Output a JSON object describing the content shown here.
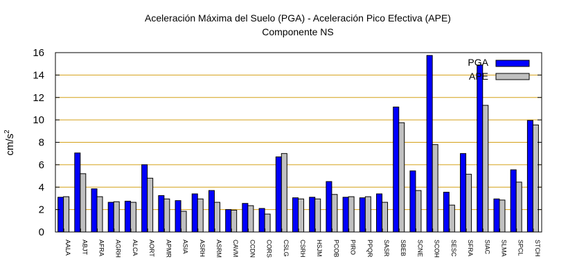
{
  "chart_data": {
    "type": "bar",
    "title": "Aceleración Máxima del Suelo (PGA) -  Aceleración Pico Efectiva (APE)",
    "subtitle": "Componente NS",
    "xlabel": "",
    "ylabel": "cm/s",
    "ylabel_sup": "2",
    "ylim": [
      0,
      16
    ],
    "yticks": [
      0,
      2,
      4,
      6,
      8,
      10,
      12,
      14,
      16
    ],
    "grid": "horizontal",
    "legend": "top-right",
    "categories": [
      "AALA",
      "ABJT",
      "AFRA",
      "AGRH",
      "ALCA",
      "AORT",
      "APMR",
      "ASIA",
      "ASRH",
      "ASRM",
      "CAVM",
      "CCDN",
      "CORS",
      "CSLG",
      "CSRH",
      "HSJM",
      "PCOB",
      "PIRO",
      "PPQR",
      "SASR",
      "SBEB",
      "SCNE",
      "SCOH",
      "SESC",
      "SFRA",
      "SIAC",
      "SLMA",
      "SPCL",
      "STCH"
    ],
    "series": [
      {
        "name": "PGA",
        "color": "#0000ff",
        "values": [
          3.1,
          7.05,
          3.85,
          2.65,
          2.75,
          6.0,
          3.25,
          2.8,
          3.4,
          3.7,
          2.0,
          2.55,
          2.1,
          6.7,
          3.05,
          3.1,
          4.5,
          3.1,
          3.05,
          3.4,
          11.15,
          5.45,
          15.75,
          3.55,
          7.0,
          14.9,
          2.95,
          5.55,
          9.95
        ]
      },
      {
        "name": "APE",
        "color": "#c0c0c0",
        "values": [
          3.15,
          5.2,
          3.15,
          2.7,
          2.65,
          4.8,
          2.95,
          1.85,
          2.95,
          2.65,
          1.95,
          2.35,
          1.6,
          7.0,
          2.95,
          2.95,
          3.35,
          3.15,
          3.15,
          2.65,
          9.75,
          3.7,
          7.8,
          2.4,
          5.15,
          11.3,
          2.85,
          4.45,
          9.55
        ]
      }
    ]
  }
}
